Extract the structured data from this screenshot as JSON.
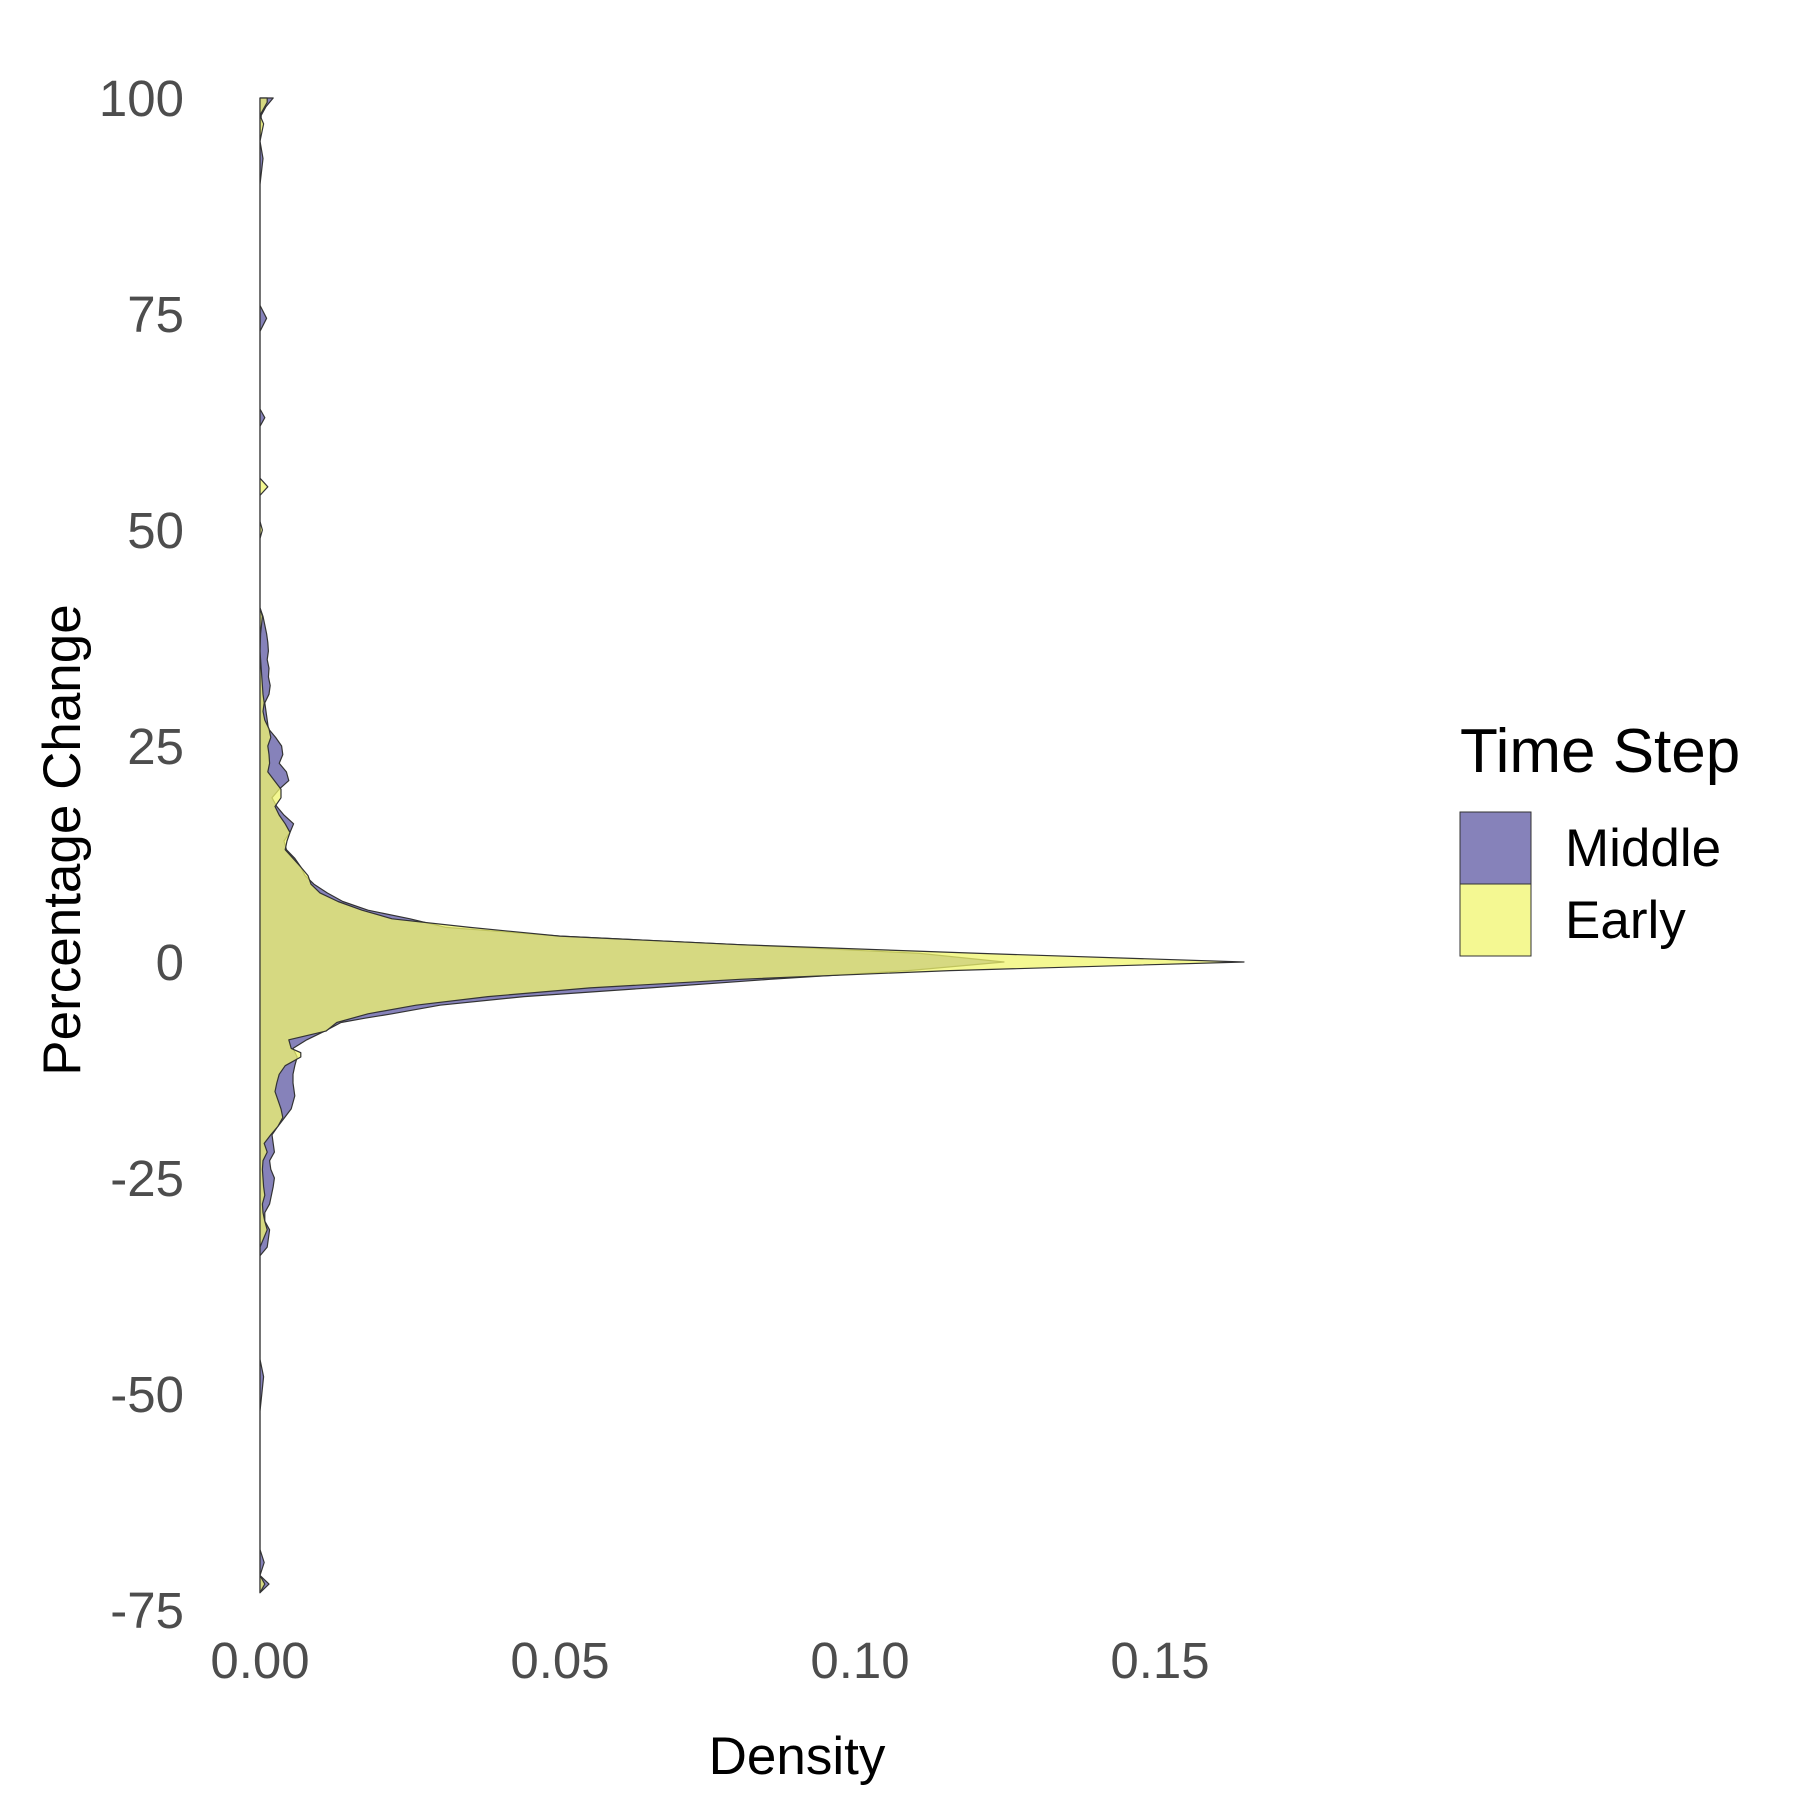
{
  "chart_data": {
    "type": "area",
    "orientation": "horizontal-density",
    "xlabel": "Density",
    "ylabel": "Percentage Change",
    "xlim": [
      0,
      0.18
    ],
    "ylim": [
      -75,
      100
    ],
    "x_ticks": [
      0.0,
      0.05,
      0.1,
      0.15
    ],
    "x_tick_labels": [
      "0.00",
      "0.05",
      "0.10",
      "0.15"
    ],
    "y_ticks": [
      -75,
      -50,
      -25,
      0,
      25,
      50,
      75,
      100
    ],
    "y_tick_labels": [
      "-75",
      "-50",
      "-25",
      "0",
      "25",
      "50",
      "75",
      "100"
    ],
    "grid": false,
    "legend": {
      "title": "Time Step",
      "position": "right"
    },
    "series": [
      {
        "name": "Middle",
        "color": "#8682ba",
        "opacity": 1.0,
        "points": [
          [
            -73,
            0.0
          ],
          [
            -72,
            0.0015
          ],
          [
            -71,
            0.0
          ],
          [
            -69.5,
            0.0007
          ],
          [
            -68,
            0.0
          ],
          [
            -60,
            0.0
          ],
          [
            -52,
            0.0
          ],
          [
            -48,
            0.0006
          ],
          [
            -46,
            0.0
          ],
          [
            -40,
            0.0
          ],
          [
            -34,
            0.0
          ],
          [
            -33,
            0.0012
          ],
          [
            -31,
            0.0016
          ],
          [
            -30,
            0.0008
          ],
          [
            -29,
            0.0008
          ],
          [
            -28,
            0.0016
          ],
          [
            -26,
            0.0022
          ],
          [
            -25,
            0.0024
          ],
          [
            -24,
            0.0018
          ],
          [
            -23,
            0.0016
          ],
          [
            -22,
            0.0024
          ],
          [
            -21,
            0.0022
          ],
          [
            -20,
            0.002
          ],
          [
            -19,
            0.003
          ],
          [
            -17,
            0.0052
          ],
          [
            -15.5,
            0.0058
          ],
          [
            -14,
            0.0055
          ],
          [
            -13,
            0.0055
          ],
          [
            -12,
            0.0058
          ],
          [
            -11,
            0.0062
          ],
          [
            -10,
            0.0055
          ],
          [
            -9,
            0.0078
          ],
          [
            -8,
            0.0108
          ],
          [
            -7,
            0.0135
          ],
          [
            -6.5,
            0.0175
          ],
          [
            -6,
            0.022
          ],
          [
            -5,
            0.03
          ],
          [
            -4,
            0.044
          ],
          [
            -3,
            0.065
          ],
          [
            -2,
            0.085
          ],
          [
            -1,
            0.108
          ],
          [
            0,
            0.124
          ],
          [
            1,
            0.11
          ],
          [
            2,
            0.08
          ],
          [
            3,
            0.05
          ],
          [
            4,
            0.031
          ],
          [
            5,
            0.025
          ],
          [
            6,
            0.018
          ],
          [
            7,
            0.0138
          ],
          [
            8,
            0.0112
          ],
          [
            9,
            0.009
          ],
          [
            10,
            0.0075
          ],
          [
            11,
            0.0068
          ],
          [
            12,
            0.0058
          ],
          [
            13,
            0.0044
          ],
          [
            14,
            0.004
          ],
          [
            15,
            0.005
          ],
          [
            16,
            0.0056
          ],
          [
            17,
            0.004
          ],
          [
            18,
            0.0028
          ],
          [
            19,
            0.002
          ],
          [
            20,
            0.0032
          ],
          [
            21,
            0.0048
          ],
          [
            22,
            0.0044
          ],
          [
            23,
            0.0032
          ],
          [
            24,
            0.0038
          ],
          [
            25,
            0.0036
          ],
          [
            26,
            0.0026
          ],
          [
            27,
            0.0014
          ],
          [
            28,
            0.0012
          ],
          [
            29,
            0.001
          ],
          [
            30,
            0.0008
          ],
          [
            31,
            0.0015
          ],
          [
            32,
            0.0017
          ],
          [
            33,
            0.0014
          ],
          [
            34,
            0.0015
          ],
          [
            35,
            0.0012
          ],
          [
            36,
            0.0014
          ],
          [
            37,
            0.0013
          ],
          [
            38,
            0.0011
          ],
          [
            39,
            0.0008
          ],
          [
            40,
            0.0005
          ],
          [
            41,
            0.0
          ],
          [
            62,
            0.0
          ],
          [
            63,
            0.0008
          ],
          [
            64,
            0.0
          ],
          [
            73,
            0.0
          ],
          [
            74.5,
            0.0011
          ],
          [
            76,
            0.0
          ],
          [
            90,
            0.0
          ],
          [
            93,
            0.0005
          ],
          [
            95,
            0.0
          ],
          [
            98,
            0.0002
          ],
          [
            99,
            0.001
          ],
          [
            100,
            0.0022
          ]
        ]
      },
      {
        "name": "Early",
        "color": "#f0f56d",
        "opacity": 0.75,
        "points": [
          [
            -73,
            0.0
          ],
          [
            -72,
            0.0008
          ],
          [
            -71,
            0.0
          ],
          [
            -60,
            0.0
          ],
          [
            -40,
            0.0
          ],
          [
            -33,
            0.0
          ],
          [
            -32,
            0.0006
          ],
          [
            -31,
            0.0012
          ],
          [
            -30,
            0.0008
          ],
          [
            -29,
            0.0005
          ],
          [
            -28,
            0.0004
          ],
          [
            -27,
            0.0008
          ],
          [
            -26,
            0.0006
          ],
          [
            -25,
            0.0005
          ],
          [
            -24,
            0.0004
          ],
          [
            -23,
            0.0005
          ],
          [
            -22,
            0.0012
          ],
          [
            -21,
            0.0007
          ],
          [
            -20,
            0.0018
          ],
          [
            -19,
            0.003
          ],
          [
            -18,
            0.0038
          ],
          [
            -17,
            0.0035
          ],
          [
            -16,
            0.003
          ],
          [
            -15,
            0.0025
          ],
          [
            -14,
            0.0028
          ],
          [
            -13,
            0.0032
          ],
          [
            -12,
            0.0042
          ],
          [
            -11,
            0.0068
          ],
          [
            -10.5,
            0.0068
          ],
          [
            -10,
            0.0052
          ],
          [
            -9,
            0.0048
          ],
          [
            -8,
            0.011
          ],
          [
            -7,
            0.0128
          ],
          [
            -6,
            0.018
          ],
          [
            -5,
            0.026
          ],
          [
            -4,
            0.038
          ],
          [
            -3,
            0.055
          ],
          [
            -2,
            0.08
          ],
          [
            -1,
            0.115
          ],
          [
            0,
            0.164
          ],
          [
            1,
            0.12
          ],
          [
            2,
            0.08
          ],
          [
            3,
            0.05
          ],
          [
            4,
            0.035
          ],
          [
            5,
            0.022
          ],
          [
            6,
            0.017
          ],
          [
            7,
            0.013
          ],
          [
            8,
            0.01
          ],
          [
            9,
            0.0085
          ],
          [
            10,
            0.008
          ],
          [
            11,
            0.0068
          ],
          [
            12,
            0.0055
          ],
          [
            13,
            0.0042
          ],
          [
            14,
            0.0045
          ],
          [
            15,
            0.005
          ],
          [
            16,
            0.0042
          ],
          [
            17,
            0.0032
          ],
          [
            18,
            0.0025
          ],
          [
            19,
            0.0035
          ],
          [
            20,
            0.0035
          ],
          [
            21,
            0.0024
          ],
          [
            22,
            0.0013
          ],
          [
            23,
            0.0016
          ],
          [
            24,
            0.0015
          ],
          [
            25,
            0.0013
          ],
          [
            26,
            0.0018
          ],
          [
            27,
            0.0015
          ],
          [
            28,
            0.0008
          ],
          [
            29,
            0.0005
          ],
          [
            30,
            0.0007
          ],
          [
            31,
            0.0005
          ],
          [
            32,
            0.0004
          ],
          [
            33,
            0.0003
          ],
          [
            34,
            0.0002
          ],
          [
            36,
            0.0
          ],
          [
            38,
            0.0001
          ],
          [
            40,
            0.0004
          ],
          [
            41,
            0.0
          ],
          [
            49,
            0.0
          ],
          [
            50,
            0.0004
          ],
          [
            51,
            0.0
          ],
          [
            54,
            0.0
          ],
          [
            55,
            0.0013
          ],
          [
            56,
            0.0
          ],
          [
            95,
            0.0
          ],
          [
            97,
            0.0006
          ],
          [
            98,
            0.0
          ],
          [
            99.5,
            0.0012
          ],
          [
            100,
            0.0012
          ]
        ]
      }
    ]
  }
}
